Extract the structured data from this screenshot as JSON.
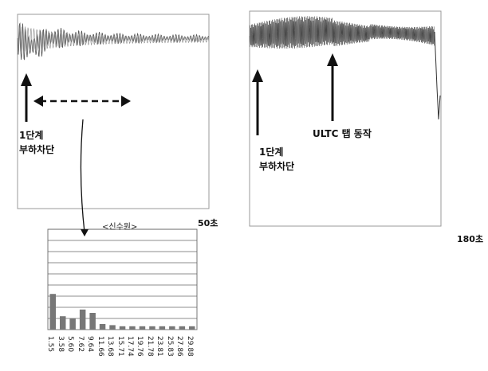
{
  "chart_data": [
    {
      "type": "line",
      "panel": "left",
      "description_labels": {
        "annotation_text": [
          "1단계",
          "부하차단"
        ],
        "x_label": "<신수원>",
        "x_end_label": "50초"
      },
      "series": [
        {
          "values_shape": "damped oscillation after load shedding, settling to steady oscillation",
          "x": [
            0,
            5,
            10,
            15,
            20,
            25,
            30,
            35,
            40,
            45,
            50
          ],
          "y": [
            1.0,
            0.96,
            0.98,
            0.985,
            0.99,
            0.99,
            0.99,
            0.99,
            0.99,
            0.99,
            0.99
          ]
        }
      ]
    },
    {
      "type": "line",
      "panel": "right",
      "description_labels": {
        "annotation_left": [
          "1단계",
          "부하차단"
        ],
        "annotation_right": "ULTC 탭 동작",
        "x_end_label": "180초"
      },
      "series": [
        {
          "values_shape": "high-frequency oscillation band, drop at end",
          "x": [
            0,
            20,
            40,
            60,
            80,
            100,
            120,
            140,
            160,
            180
          ],
          "y": [
            0.99,
            0.995,
            1.0,
            0.995,
            0.99,
            0.985,
            0.99,
            0.995,
            0.995,
            0.97
          ]
        }
      ]
    },
    {
      "type": "bar",
      "panel": "bottom-left spectrum",
      "categories": [
        "1.55",
        "3.58",
        "5.60",
        "7.62",
        "9.64",
        "11.66",
        "13.68",
        "15.71",
        "17.74",
        "19.76",
        "21.78",
        "23.81",
        "25.83",
        "27.86",
        "29.88"
      ],
      "values": [
        0.32,
        0.12,
        0.1,
        0.18,
        0.15,
        0.05,
        0.04,
        0.03,
        0.03,
        0.03,
        0.03,
        0.03,
        0.03,
        0.03,
        0.03
      ],
      "ylim": [
        0,
        0.9
      ]
    }
  ]
}
